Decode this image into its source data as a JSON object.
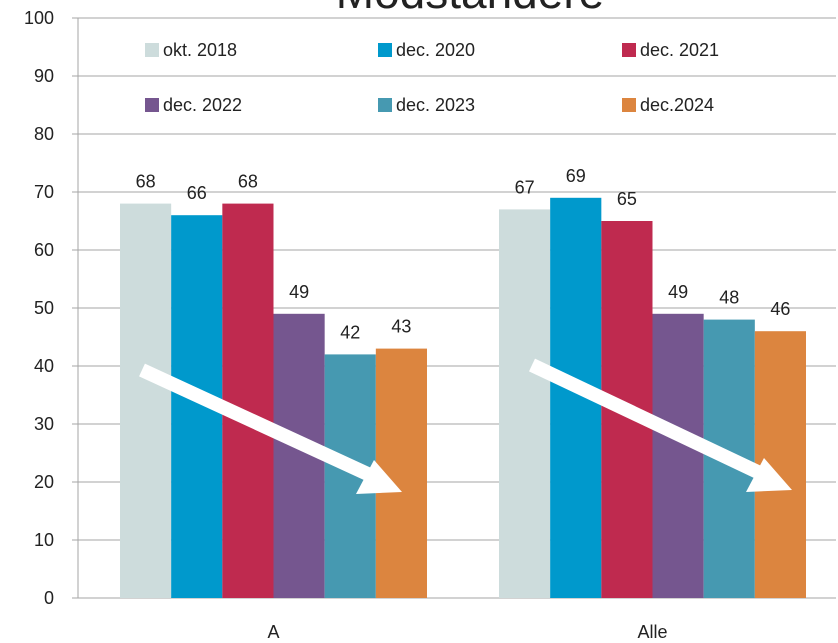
{
  "chart_data": {
    "type": "bar",
    "title": "Modstandere",
    "categories": [
      "A",
      "Alle"
    ],
    "series": [
      {
        "name": "okt. 2018",
        "color": "#cddcdc",
        "values": [
          68,
          67
        ]
      },
      {
        "name": "dec. 2020",
        "color": "#0099cc",
        "values": [
          66,
          69
        ]
      },
      {
        "name": "dec. 2021",
        "color": "#bf2a4f",
        "values": [
          68,
          65
        ]
      },
      {
        "name": "dec. 2022",
        "color": "#75568f",
        "values": [
          49,
          49
        ]
      },
      {
        "name": "dec. 2023",
        "color": "#4699b1",
        "values": [
          42,
          48
        ]
      },
      {
        "name": "dec.2024",
        "color": "#dc853f",
        "values": [
          43,
          46
        ]
      }
    ],
    "ylim": [
      0,
      100
    ],
    "yticks": [
      0,
      10,
      20,
      30,
      40,
      50,
      60,
      70,
      80,
      90,
      100
    ],
    "grid": true
  }
}
